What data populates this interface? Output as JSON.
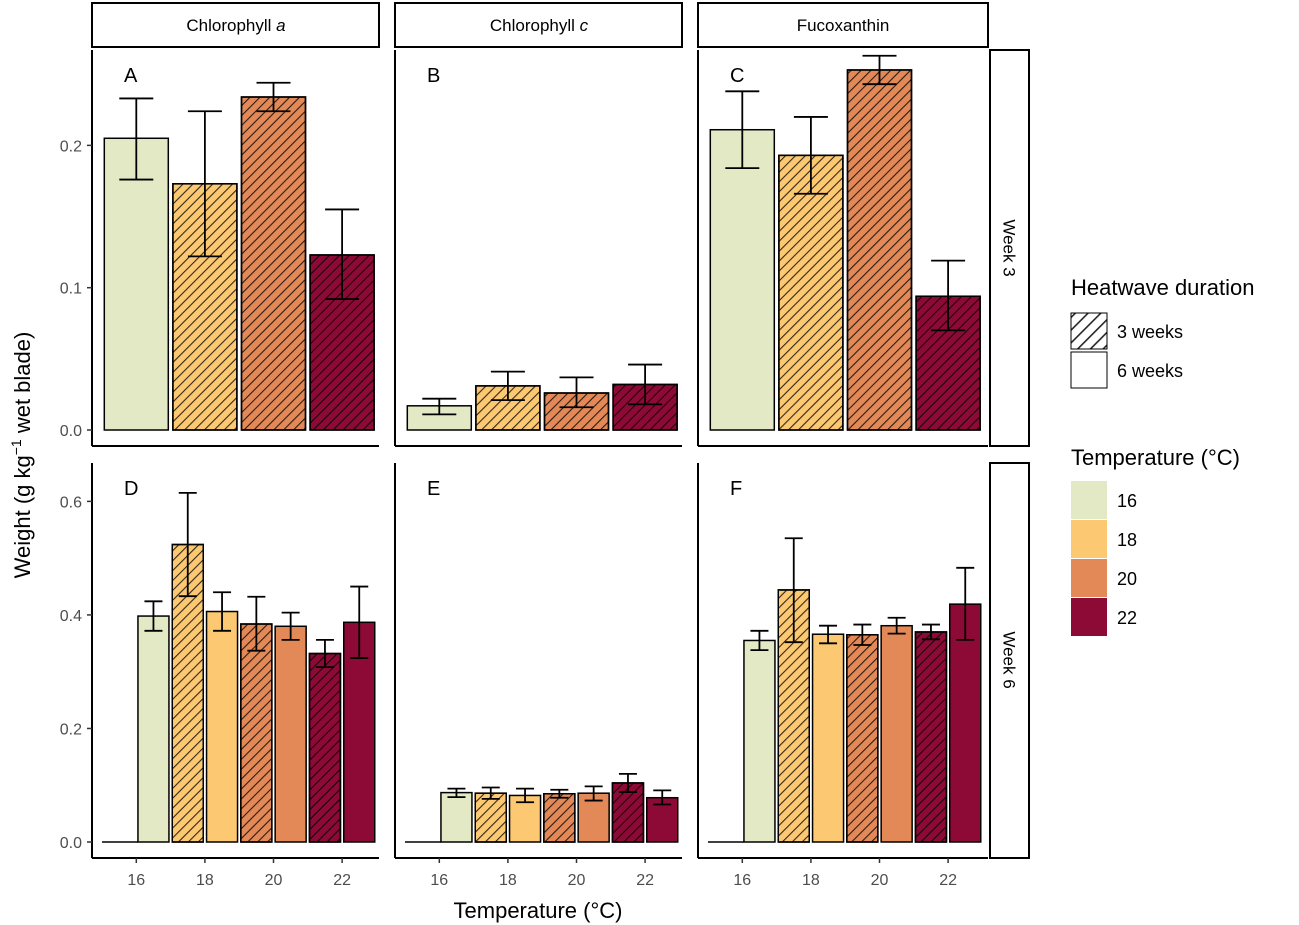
{
  "chart_data": {
    "type": "bar",
    "xlabel": "Temperature (°C)",
    "ylabel": {
      "main": "Weight (g kg",
      "sup": "−1",
      "rest": " wet blade)"
    },
    "x_ticks": [
      "16",
      "18",
      "20",
      "22"
    ],
    "columns": [
      {
        "label": "Chlorophyll ",
        "label_italic": "a"
      },
      {
        "label": "Chlorophyll ",
        "label_italic": "c"
      },
      {
        "label": "Fucoxanthin",
        "label_italic": ""
      }
    ],
    "rows": [
      {
        "label": "Week 3",
        "ylim": [
          0,
          0.26
        ],
        "yticks": [
          "0.0",
          "0.1",
          "0.2"
        ],
        "ytick_values": [
          0,
          0.1,
          0.2
        ]
      },
      {
        "label": "Week 6",
        "ylim": [
          0,
          0.65
        ],
        "yticks": [
          "0.0",
          "0.2",
          "0.4",
          "0.6"
        ],
        "ytick_values": [
          0,
          0.2,
          0.4,
          0.6
        ]
      }
    ],
    "colors": {
      "16": "#e3e9c4",
      "18": "#fcc872",
      "20": "#e28957",
      "22": "#8e0a36"
    },
    "panels": [
      {
        "id": "A",
        "row": 0,
        "col": 0,
        "bars": [
          {
            "temp": "16",
            "pos": 0,
            "hatched": false,
            "value": 0.205,
            "err": [
              0.176,
              0.233
            ]
          },
          {
            "temp": "18",
            "pos": 1,
            "hatched": true,
            "value": 0.173,
            "err": [
              0.122,
              0.224
            ]
          },
          {
            "temp": "20",
            "pos": 2,
            "hatched": true,
            "value": 0.234,
            "err": [
              0.224,
              0.244
            ]
          },
          {
            "temp": "22",
            "pos": 3,
            "hatched": true,
            "value": 0.123,
            "err": [
              0.092,
              0.155
            ]
          }
        ]
      },
      {
        "id": "B",
        "row": 0,
        "col": 1,
        "bars": [
          {
            "temp": "16",
            "pos": 0,
            "hatched": false,
            "value": 0.017,
            "err": [
              0.011,
              0.022
            ]
          },
          {
            "temp": "18",
            "pos": 1,
            "hatched": true,
            "value": 0.031,
            "err": [
              0.021,
              0.041
            ]
          },
          {
            "temp": "20",
            "pos": 2,
            "hatched": true,
            "value": 0.026,
            "err": [
              0.016,
              0.037
            ]
          },
          {
            "temp": "22",
            "pos": 3,
            "hatched": true,
            "value": 0.032,
            "err": [
              0.018,
              0.046
            ]
          }
        ]
      },
      {
        "id": "C",
        "row": 0,
        "col": 2,
        "bars": [
          {
            "temp": "16",
            "pos": 0,
            "hatched": false,
            "value": 0.211,
            "err": [
              0.184,
              0.238
            ]
          },
          {
            "temp": "18",
            "pos": 1,
            "hatched": true,
            "value": 0.193,
            "err": [
              0.166,
              0.22
            ]
          },
          {
            "temp": "20",
            "pos": 2,
            "hatched": true,
            "value": 0.253,
            "err": [
              0.243,
              0.263
            ]
          },
          {
            "temp": "22",
            "pos": 3,
            "hatched": true,
            "value": 0.094,
            "err": [
              0.07,
              0.119
            ]
          }
        ]
      },
      {
        "id": "D",
        "row": 1,
        "col": 0,
        "bars": [
          {
            "temp": "16",
            "pos": 0.25,
            "hatched": false,
            "value": 0.398,
            "err": [
              0.372,
              0.424
            ]
          },
          {
            "temp": "18",
            "pos": 0.75,
            "hatched": true,
            "value": 0.524,
            "err": [
              0.433,
              0.615
            ]
          },
          {
            "temp": "18",
            "pos": 1.25,
            "hatched": false,
            "value": 0.406,
            "err": [
              0.372,
              0.44
            ]
          },
          {
            "temp": "20",
            "pos": 1.75,
            "hatched": true,
            "value": 0.384,
            "err": [
              0.337,
              0.432
            ]
          },
          {
            "temp": "20",
            "pos": 2.25,
            "hatched": false,
            "value": 0.38,
            "err": [
              0.356,
              0.404
            ]
          },
          {
            "temp": "22",
            "pos": 2.75,
            "hatched": true,
            "value": 0.332,
            "err": [
              0.308,
              0.356
            ]
          },
          {
            "temp": "22",
            "pos": 3.25,
            "hatched": false,
            "value": 0.387,
            "err": [
              0.324,
              0.45
            ]
          }
        ]
      },
      {
        "id": "E",
        "row": 1,
        "col": 1,
        "bars": [
          {
            "temp": "16",
            "pos": 0.25,
            "hatched": false,
            "value": 0.087,
            "err": [
              0.079,
              0.094
            ]
          },
          {
            "temp": "18",
            "pos": 0.75,
            "hatched": true,
            "value": 0.086,
            "err": [
              0.076,
              0.096
            ]
          },
          {
            "temp": "18",
            "pos": 1.25,
            "hatched": false,
            "value": 0.082,
            "err": [
              0.07,
              0.094
            ]
          },
          {
            "temp": "20",
            "pos": 1.75,
            "hatched": true,
            "value": 0.085,
            "err": [
              0.078,
              0.092
            ]
          },
          {
            "temp": "20",
            "pos": 2.25,
            "hatched": false,
            "value": 0.086,
            "err": [
              0.073,
              0.098
            ]
          },
          {
            "temp": "22",
            "pos": 2.75,
            "hatched": true,
            "value": 0.104,
            "err": [
              0.088,
              0.12
            ]
          },
          {
            "temp": "22",
            "pos": 3.25,
            "hatched": false,
            "value": 0.078,
            "err": [
              0.066,
              0.091
            ]
          }
        ]
      },
      {
        "id": "F",
        "row": 1,
        "col": 2,
        "bars": [
          {
            "temp": "16",
            "pos": 0.25,
            "hatched": false,
            "value": 0.355,
            "err": [
              0.338,
              0.372
            ]
          },
          {
            "temp": "18",
            "pos": 0.75,
            "hatched": true,
            "value": 0.444,
            "err": [
              0.352,
              0.535
            ]
          },
          {
            "temp": "18",
            "pos": 1.25,
            "hatched": false,
            "value": 0.366,
            "err": [
              0.35,
              0.381
            ]
          },
          {
            "temp": "20",
            "pos": 1.75,
            "hatched": true,
            "value": 0.365,
            "err": [
              0.347,
              0.383
            ]
          },
          {
            "temp": "20",
            "pos": 2.25,
            "hatched": false,
            "value": 0.381,
            "err": [
              0.367,
              0.395
            ]
          },
          {
            "temp": "22",
            "pos": 2.75,
            "hatched": true,
            "value": 0.37,
            "err": [
              0.357,
              0.383
            ]
          },
          {
            "temp": "22",
            "pos": 3.25,
            "hatched": false,
            "value": 0.419,
            "err": [
              0.356,
              0.483
            ]
          }
        ]
      }
    ],
    "legend": {
      "placement": "right",
      "duration_title": "Heatwave duration",
      "duration_items": [
        {
          "label": "3 weeks",
          "hatched": true
        },
        {
          "label": "6 weeks",
          "hatched": false
        }
      ],
      "temperature_title": "Temperature (°C)",
      "temperature_items": [
        "16",
        "18",
        "20",
        "22"
      ]
    }
  }
}
